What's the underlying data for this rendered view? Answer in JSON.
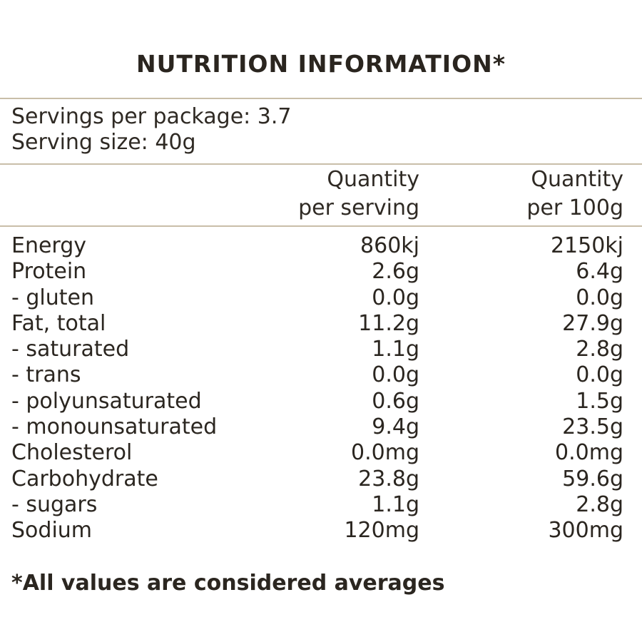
{
  "title": "NUTRITION INFORMATION*",
  "servings_per_package": "Servings per package: 3.7",
  "serving_size": "Serving size: 40g",
  "columns": {
    "per_serving": [
      "Quantity",
      "per serving"
    ],
    "per_100g": [
      "Quantity",
      "per 100g"
    ]
  },
  "rows": [
    {
      "label": "Energy",
      "per_serving": "860kj",
      "per_100g": "2150kj"
    },
    {
      "label": "Protein",
      "per_serving": "2.6g",
      "per_100g": "6.4g"
    },
    {
      "label": "- gluten",
      "per_serving": "0.0g",
      "per_100g": "0.0g"
    },
    {
      "label": "Fat, total",
      "per_serving": "11.2g",
      "per_100g": "27.9g"
    },
    {
      "label": "- saturated",
      "per_serving": "1.1g",
      "per_100g": "2.8g"
    },
    {
      "label": "- trans",
      "per_serving": "0.0g",
      "per_100g": "0.0g"
    },
    {
      "label": "- polyunsaturated",
      "per_serving": "0.6g",
      "per_100g": "1.5g"
    },
    {
      "label": "- monounsaturated",
      "per_serving": "9.4g",
      "per_100g": "23.5g"
    },
    {
      "label": "Cholesterol",
      "per_serving": "0.0mg",
      "per_100g": "0.0mg"
    },
    {
      "label": "Carbohydrate",
      "per_serving": "23.8g",
      "per_100g": "59.6g"
    },
    {
      "label": "- sugars",
      "per_serving": "1.1g",
      "per_100g": "2.8g"
    },
    {
      "label": "Sodium",
      "per_serving": "120mg",
      "per_100g": "300mg"
    }
  ],
  "footnote": "*All values are considered averages",
  "colors": {
    "rule": "#c9bea9",
    "text": "#2b2620"
  }
}
